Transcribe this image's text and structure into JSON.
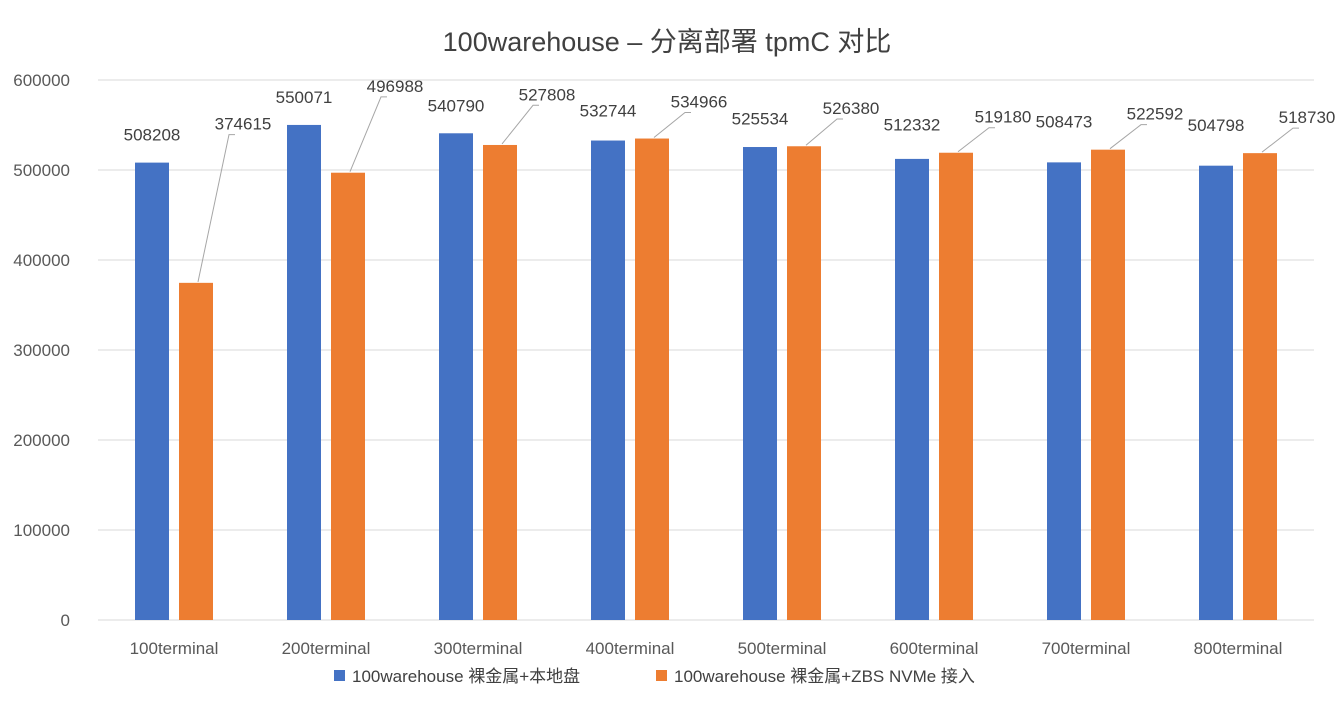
{
  "chart_data": {
    "type": "bar",
    "title": "100warehouse – 分离部署 tpmC 对比",
    "xlabel": "",
    "ylabel": "",
    "ylim": [
      0,
      600000
    ],
    "yticks": [
      "0",
      "100000",
      "200000",
      "300000",
      "400000",
      "500000",
      "600000"
    ],
    "grid": true,
    "legend_position": "bottom",
    "categories": [
      "100terminal",
      "200terminal",
      "300terminal",
      "400terminal",
      "500terminal",
      "600terminal",
      "700terminal",
      "800terminal"
    ],
    "series": [
      {
        "name": "100warehouse 裸金属+本地盘",
        "color": "#4472c4",
        "values": [
          508208,
          550071,
          540790,
          532744,
          525534,
          512332,
          508473,
          504798
        ]
      },
      {
        "name": "100warehouse 裸金属+ZBS NVMe 接入",
        "color": "#ed7d31",
        "values": [
          374615,
          496988,
          527808,
          534966,
          526380,
          519180,
          522592,
          518730
        ]
      }
    ]
  }
}
